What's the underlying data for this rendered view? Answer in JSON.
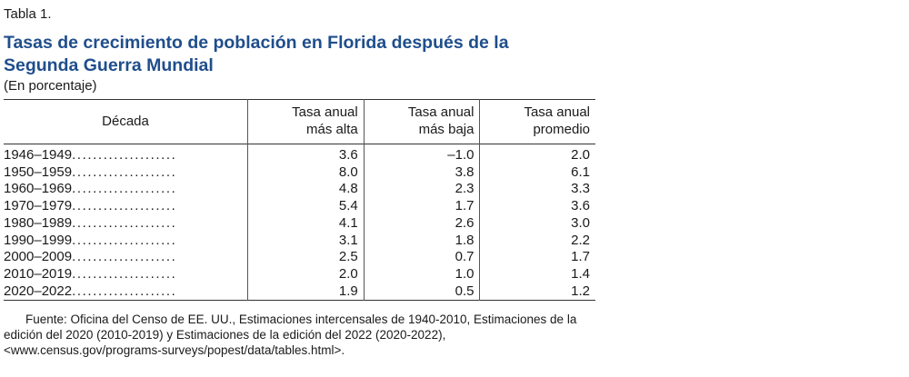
{
  "table": {
    "number": "Tabla 1.",
    "title": "Tasas de crecimiento de población en Florida después de la Segunda Guerra Mundial",
    "units": "(En porcentaje)",
    "headers": {
      "decade": "Década",
      "high": [
        "Tasa anual",
        "más alta"
      ],
      "low": [
        "Tasa anual",
        "más baja"
      ],
      "avg": [
        "Tasa anual",
        "promedio"
      ]
    },
    "leader_dots": "....................",
    "rows": [
      {
        "decade": "1946–1949",
        "high": "3.6",
        "low": "–1.0",
        "avg": "2.0"
      },
      {
        "decade": "1950–1959",
        "high": "8.0",
        "low": "3.8",
        "avg": "6.1"
      },
      {
        "decade": "1960–1969",
        "high": "4.8",
        "low": "2.3",
        "avg": "3.3"
      },
      {
        "decade": "1970–1979",
        "high": "5.4",
        "low": "1.7",
        "avg": "3.6"
      },
      {
        "decade": "1980–1989",
        "high": "4.1",
        "low": "2.6",
        "avg": "3.0"
      },
      {
        "decade": "1990–1999",
        "high": "3.1",
        "low": "1.8",
        "avg": "2.2"
      },
      {
        "decade": "2000–2009",
        "high": "2.5",
        "low": "0.7",
        "avg": "1.7"
      },
      {
        "decade": "2010–2019",
        "high": "2.0",
        "low": "1.0",
        "avg": "1.4"
      },
      {
        "decade": "2020–2022",
        "high": "1.9",
        "low": "0.5",
        "avg": "1.2"
      }
    ],
    "source": "Fuente: Oficina del Censo de EE. UU., Estimaciones intercensales de 1940-2010, Estimaciones de la edición del 2020 (2010-2019) y Estimaciones de la edición del 2022 (2020-2022), <www.census.gov/programs-surveys/popest/data/tables.html>."
  },
  "colors": {
    "title": "#1f4e8c",
    "text": "#1a1a1a",
    "rule": "#333333"
  }
}
